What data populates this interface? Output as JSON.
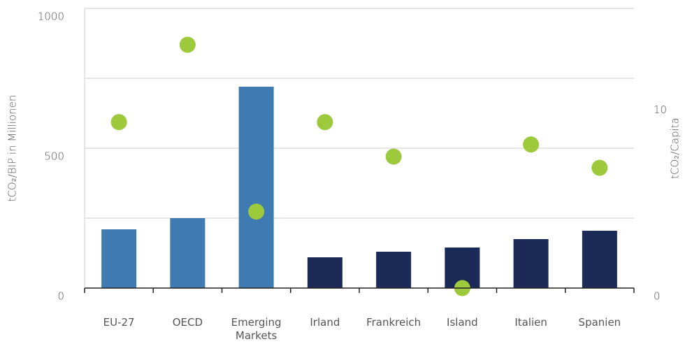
{
  "chart_data": {
    "type": "bar-dot",
    "y_label": "tCO₂/BIP in Millionen",
    "y2_label": "tCO₂/Capita",
    "categories": [
      "EU-27",
      "OECD",
      "Emerging Markets",
      "Irland",
      "Frankreich",
      "Island",
      "Italien",
      "Spanien"
    ],
    "category_labels": [
      "EU-27",
      "OECD",
      "Emerging Markets",
      "Irland",
      "Frankreich",
      "Island",
      "Italien",
      "Spanien"
    ],
    "series": [
      {
        "type": "bar",
        "values": [
          210,
          250,
          720,
          110,
          130,
          145,
          175,
          205
        ],
        "colors": [
          "#3f7ab0",
          "#3f7ab0",
          "#3f7ab0",
          "#1b2a56",
          "#1b2a56",
          "#1b2a56",
          "#1b2a56",
          "#1b2a56"
        ]
      },
      {
        "type": "dot",
        "axis": "y2",
        "color": "#9dc93c",
        "values": [
          8.9,
          13.05,
          4.1,
          8.9,
          7.05,
          0,
          7.7,
          6.45
        ]
      }
    ],
    "ylim": [
      0,
      1000
    ],
    "yticks": [
      0,
      500,
      1000
    ],
    "ygrid": [
      250,
      500,
      750,
      1000
    ],
    "y2lim": [
      0,
      15
    ],
    "y2ticks": [
      0,
      10
    ]
  }
}
